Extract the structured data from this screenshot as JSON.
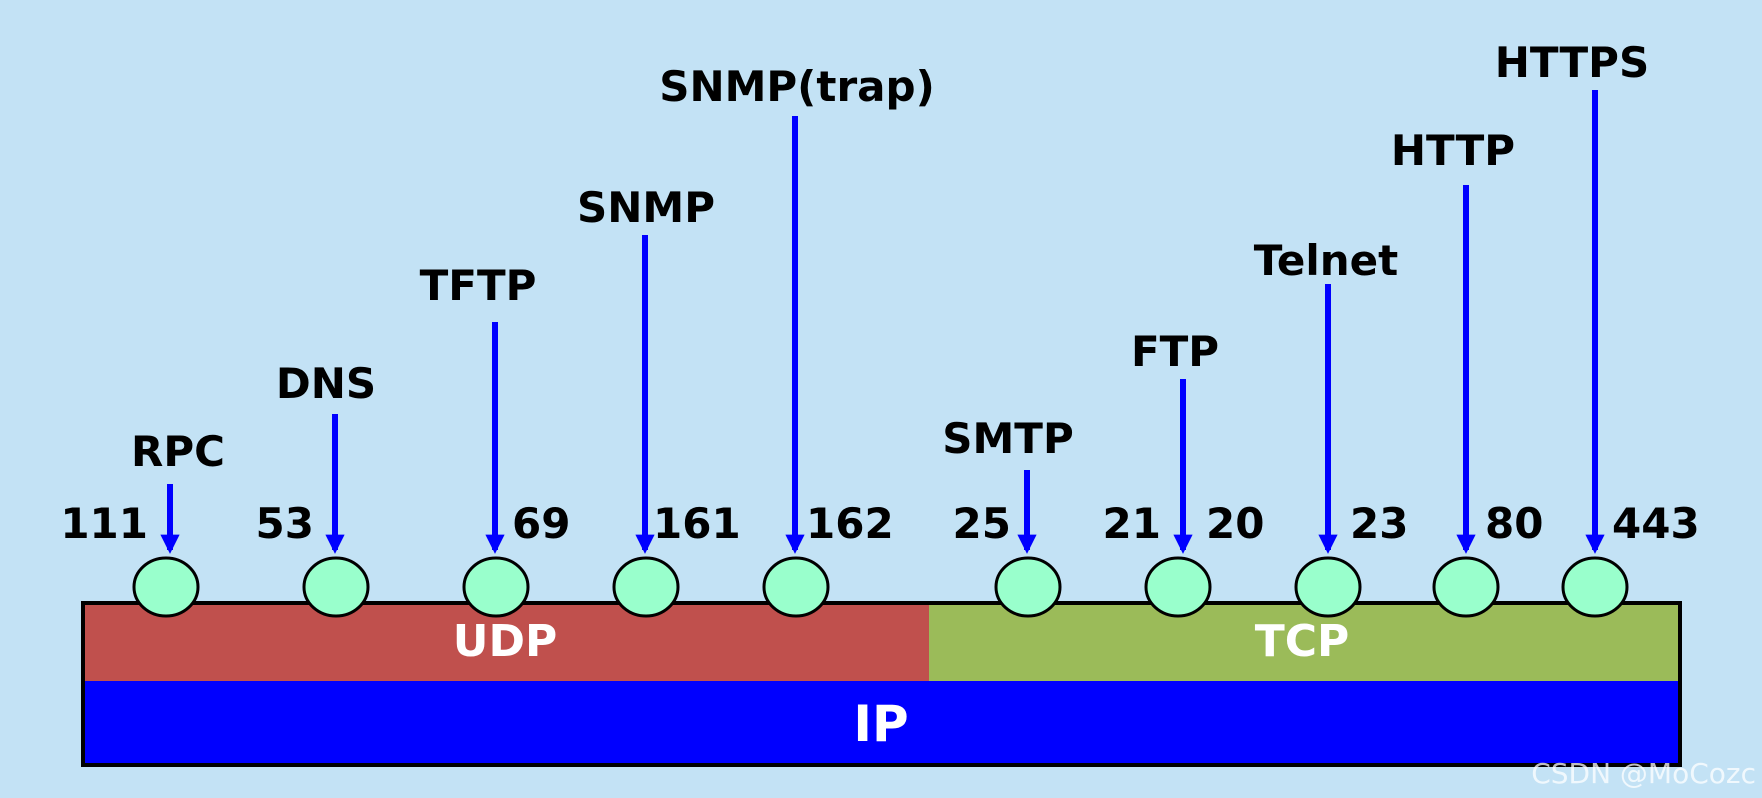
{
  "colors": {
    "background": "#c3e2f5",
    "udp": "#c0504d",
    "tcp": "#9bbb59",
    "ip": "#0000ff",
    "port_circle": "#99ffcc",
    "arrow": "#0000ff"
  },
  "layers": {
    "udp": "UDP",
    "tcp": "TCP",
    "ip": "IP"
  },
  "protocols": [
    {
      "name": "RPC",
      "port": "111",
      "transport": "UDP"
    },
    {
      "name": "DNS",
      "port": "53",
      "transport": "UDP"
    },
    {
      "name": "TFTP",
      "port": "69",
      "transport": "UDP"
    },
    {
      "name": "SNMP",
      "port": "161",
      "transport": "UDP"
    },
    {
      "name": "SNMP(trap)",
      "port": "162",
      "transport": "UDP"
    },
    {
      "name": "SMTP",
      "port": "25",
      "transport": "TCP"
    },
    {
      "name": "FTP",
      "port": "21 20",
      "transport": "TCP"
    },
    {
      "name": "Telnet",
      "port": "23",
      "transport": "TCP"
    },
    {
      "name": "HTTP",
      "port": "80",
      "transport": "TCP"
    },
    {
      "name": "HTTPS",
      "port": "443",
      "transport": "TCP"
    }
  ],
  "ports_extra": {
    "ftp_control": "21",
    "ftp_data": "20"
  },
  "watermark": "CSDN @MoCozc"
}
